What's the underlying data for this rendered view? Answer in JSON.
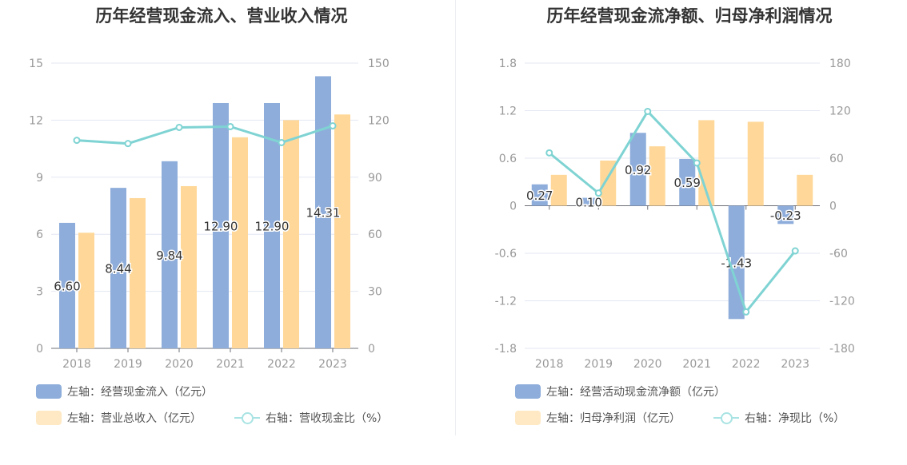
{
  "colors": {
    "bar1": "#8eaddb",
    "bar2": "#ffd899",
    "line": "#7fd3d3",
    "grid": "#e3e7f2",
    "axis": "#999999",
    "legend_bar2": "#ffe9c4"
  },
  "chart_data": [
    {
      "type": "bar+line",
      "title": "历年经营现金流入、营业收入情况",
      "categories": [
        "2018",
        "2019",
        "2020",
        "2021",
        "2022",
        "2023"
      ],
      "left_axis": {
        "ylim": [
          0,
          15
        ],
        "ticks": [
          "0",
          "3",
          "6",
          "9",
          "12",
          "15"
        ]
      },
      "right_axis": {
        "ylim": [
          0,
          150
        ],
        "ticks": [
          "0",
          "30",
          "60",
          "90",
          "120",
          "150"
        ]
      },
      "series": [
        {
          "name": "左轴：经营现金流入（亿元）",
          "type": "bar",
          "axis": "left",
          "values": [
            6.6,
            8.44,
            9.84,
            12.9,
            12.9,
            14.31
          ],
          "labels": [
            "6.60",
            "8.44",
            "9.84",
            "12.90",
            "12.90",
            "14.31"
          ]
        },
        {
          "name": "左轴：营业总收入（亿元）",
          "type": "bar",
          "axis": "left",
          "values": [
            6.08,
            7.9,
            8.53,
            11.1,
            12.0,
            12.3
          ]
        },
        {
          "name": "右轴：营收现金比（%）",
          "type": "line",
          "axis": "right",
          "values": [
            109.4,
            107.7,
            116.2,
            116.6,
            108.2,
            117.0
          ]
        }
      ]
    },
    {
      "type": "bar+line",
      "title": "历年经营现金流净额、归母净利润情况",
      "categories": [
        "2018",
        "2019",
        "2020",
        "2021",
        "2022",
        "2023"
      ],
      "left_axis": {
        "ylim": [
          -1.8,
          1.8
        ],
        "ticks": [
          "-1.8",
          "-1.2",
          "-0.6",
          "0",
          "0.6",
          "1.2",
          "1.8"
        ]
      },
      "right_axis": {
        "ylim": [
          -180,
          180
        ],
        "ticks": [
          "-180",
          "-120",
          "-60",
          "0",
          "60",
          "120",
          "180"
        ]
      },
      "series": [
        {
          "name": "左轴：经营活动现金流净额（亿元）",
          "type": "bar",
          "axis": "left",
          "values": [
            0.27,
            0.1,
            0.92,
            0.59,
            -1.43,
            -0.23
          ],
          "labels": [
            "0.27",
            "0.10",
            "0.92",
            "0.59",
            "-1.43",
            "-0.23"
          ]
        },
        {
          "name": "左轴：归母净利润（亿元）",
          "type": "bar",
          "axis": "left",
          "values": [
            0.39,
            0.57,
            0.75,
            1.08,
            1.06,
            0.39
          ]
        },
        {
          "name": "右轴：净现比（%）",
          "type": "line",
          "axis": "right",
          "values": [
            66.7,
            16,
            119,
            54,
            -134,
            -57
          ]
        }
      ]
    }
  ]
}
